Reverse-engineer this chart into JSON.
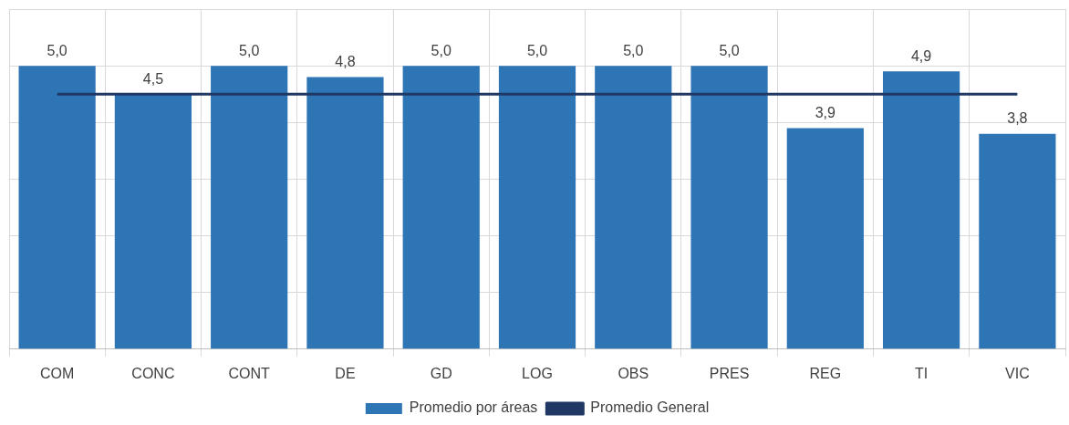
{
  "chart_data": {
    "type": "bar",
    "categories": [
      "COM",
      "CONC",
      "CONT",
      "DE",
      "GD",
      "LOG",
      "OBS",
      "PRES",
      "REG",
      "TI",
      "VIC"
    ],
    "series": [
      {
        "name": "Promedio por áreas",
        "color": "#2e75b6",
        "values": [
          5.0,
          4.5,
          5.0,
          4.8,
          5.0,
          5.0,
          5.0,
          5.0,
          3.9,
          4.9,
          3.8
        ],
        "value_labels": [
          "5,0",
          "4,5",
          "5,0",
          "4,8",
          "5,0",
          "5,0",
          "5,0",
          "5,0",
          "3,9",
          "4,9",
          "3,8"
        ]
      },
      {
        "name": "Promedio General",
        "type": "line",
        "color": "#1f3864",
        "values": [
          4.5,
          4.5,
          4.5,
          4.5,
          4.5,
          4.5,
          4.5,
          4.5,
          4.5,
          4.5,
          4.5
        ]
      }
    ],
    "ylim": [
      0,
      6
    ],
    "yticks": [
      0,
      1,
      2,
      3,
      4,
      5,
      6
    ],
    "grid": true,
    "tick_labels": "x",
    "legend": "bottom",
    "marker": "none"
  }
}
